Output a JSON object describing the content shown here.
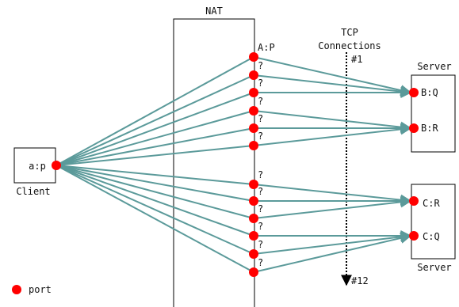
{
  "labels": {
    "nat": "NAT",
    "client_port": "a:p",
    "client": "Client",
    "nat_first_port": "A:P",
    "unknown_port": "?",
    "tcp_line1": "TCP",
    "tcp_line2": "Connections",
    "first_conn": "#1",
    "last_conn": "#12",
    "server_top": "Server",
    "server_bottom": "Server",
    "port_bq": "B:Q",
    "port_br": "B:R",
    "port_cr": "C:R",
    "port_cq": "C:Q",
    "legend_port": "port"
  },
  "colors": {
    "connection": "#5b9a9a",
    "port": "#ff0000",
    "stroke": "#000000"
  },
  "connections": [
    {
      "nat_port": "A:P",
      "server_port": "B:Q"
    },
    {
      "nat_port": "?",
      "server_port": "B:Q"
    },
    {
      "nat_port": "?",
      "server_port": "B:Q"
    },
    {
      "nat_port": "?",
      "server_port": "B:R"
    },
    {
      "nat_port": "?",
      "server_port": "B:R"
    },
    {
      "nat_port": "?",
      "server_port": "B:R"
    },
    {
      "nat_port": "?",
      "server_port": "C:R"
    },
    {
      "nat_port": "?",
      "server_port": "C:R"
    },
    {
      "nat_port": "?",
      "server_port": "C:R"
    },
    {
      "nat_port": "?",
      "server_port": "C:Q"
    },
    {
      "nat_port": "?",
      "server_port": "C:Q"
    },
    {
      "nat_port": "?",
      "server_port": "C:Q"
    }
  ]
}
